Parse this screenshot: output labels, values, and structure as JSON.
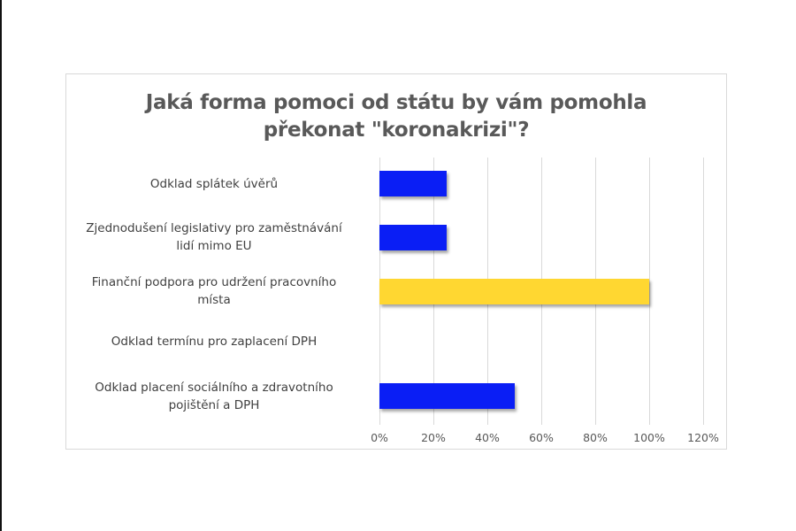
{
  "chart_data": {
    "type": "bar",
    "orientation": "horizontal",
    "title": "Jaká forma pomoci od státu by vám pomohla překonat \"koronakrizi\"?",
    "title_lines": [
      "Jaká forma pomoci od státu by vám pomohla",
      "překonat  \"koronakrizi\"?"
    ],
    "categories": [
      "Odklad splátek úvěrů",
      "Zjednodušení legislativy pro zaměstnávání lidí mimo EU",
      "Finanční podpora pro udržení pracovního místa",
      "Odklad termínu pro zaplacení DPH",
      "Odklad placení sociálního a zdravotního pojištění a DPH"
    ],
    "category_lines": [
      [
        "Odklad splátek úvěrů"
      ],
      [
        "Zjednodušení legislativy pro zaměstnávání",
        "lidí mimo EU"
      ],
      [
        "Finanční podpora pro udržení pracovního",
        "místa"
      ],
      [
        "Odklad termínu pro zaplacení DPH"
      ],
      [
        "Odklad placení sociálního a zdravotního",
        "pojištění a DPH"
      ]
    ],
    "values": [
      25,
      25,
      100,
      0,
      50
    ],
    "bar_colors": [
      "#0a1ef5",
      "#0a1ef5",
      "#ffd731",
      "#0a1ef5",
      "#0a1ef5"
    ],
    "xlabel": "",
    "ylabel": "",
    "xlim": [
      0,
      120
    ],
    "x_ticks": [
      "0%",
      "20%",
      "40%",
      "60%",
      "80%",
      "100%",
      "120%"
    ],
    "grid": true,
    "legend": null
  }
}
